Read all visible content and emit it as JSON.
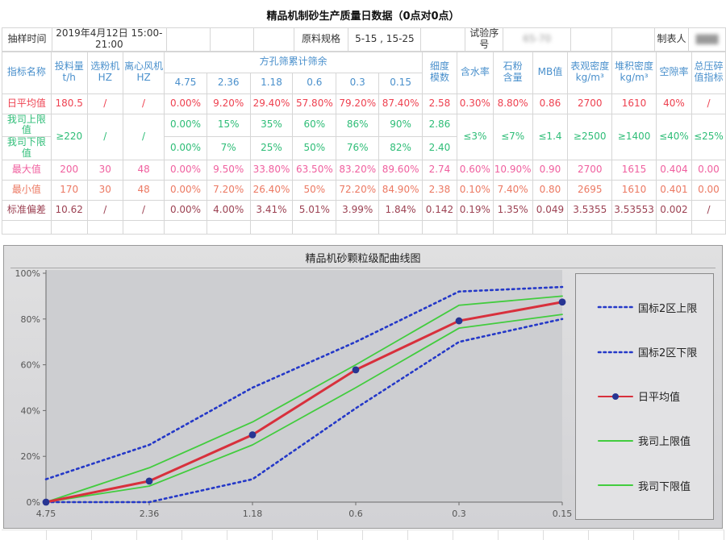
{
  "page_title": "精品机制砂生产质量日数据（0点对0点）",
  "info_row": {
    "sampling_label": "抽样时间",
    "sampling_value": "2019年4月12日 15:00-21:00",
    "material_label": "原料规格",
    "material_value": "5-15 , 15-25",
    "serial_label": "试验序号",
    "serial_value_redacted": "65-70",
    "preparer_label": "制表人",
    "preparer_value_redacted": "▇▇▇"
  },
  "table": {
    "header": {
      "indicator": "指标名称",
      "feed": "投料量\nt/h",
      "classifier": "选粉机\nHZ",
      "fan": "离心风机\nHZ",
      "sieve_group": "方孔筛累计筛余",
      "sieve_sizes": [
        "4.75",
        "2.36",
        "1.18",
        "0.6",
        "0.3",
        "0.15"
      ],
      "fineness": "细度\n模数",
      "moisture": "含水率",
      "stone_powder": "石粉\n含量",
      "mb": "MB值",
      "apparent_density": "表观密度\nkg/m³",
      "bulk_density": "堆积密度\nkg/m³",
      "void_ratio": "空隙率",
      "crush_index": "总压碎\n值指标"
    },
    "header_color": "#4a90cc",
    "rows": {
      "avg": {
        "label": "日平均值",
        "color": "#ee4150",
        "cells": [
          "180.5",
          "/",
          "/",
          "0.00%",
          "9.20%",
          "29.40%",
          "57.80%",
          "79.20%",
          "87.40%",
          "2.58",
          "0.30%",
          "8.80%",
          "0.86",
          "2700",
          "1610",
          "40%",
          "/"
        ]
      },
      "upper": {
        "label": "我司上限值",
        "color": "#2ebd77",
        "cells": [
          "0.00%",
          "15%",
          "35%",
          "60%",
          "86%",
          "90%",
          "2.86"
        ]
      },
      "lower": {
        "label": "我司下限值",
        "color": "#2ebd77",
        "cells": [
          "0.00%",
          "7%",
          "25%",
          "50%",
          "76%",
          "82%",
          "2.40"
        ]
      },
      "max": {
        "label": "最大值",
        "color": "#f0609f",
        "cells": [
          "200",
          "30",
          "48",
          "0.00%",
          "9.50%",
          "33.80%",
          "63.50%",
          "83.20%",
          "89.60%",
          "2.74",
          "0.60%",
          "10.90%",
          "0.90",
          "2700",
          "1615",
          "0.404",
          "0.00"
        ]
      },
      "min": {
        "label": "最小值",
        "color": "#ec7963",
        "cells": [
          "170",
          "30",
          "48",
          "0.00%",
          "7.20%",
          "26.40%",
          "50%",
          "72.20%",
          "84.90%",
          "2.38",
          "0.10%",
          "7.40%",
          "0.80",
          "2695",
          "1610",
          "0.401",
          "0.00"
        ]
      },
      "std": {
        "label": "标准偏差",
        "color": "#9c4253",
        "cells": [
          "10.62",
          "/",
          "/",
          "0.00%",
          "4.00%",
          "3.41%",
          "5.01%",
          "3.99%",
          "1.84%",
          "0.142",
          "0.19%",
          "1.35%",
          "0.049",
          "3.5355",
          "3.53553",
          "0.002",
          "/"
        ]
      }
    },
    "merged_limits": {
      "feed": "≥220",
      "classifier": "/",
      "fan": "/",
      "moisture": "≤3%",
      "stone_powder": "≤7%",
      "mb": "≤1.4",
      "apparent_density": "≥2500",
      "bulk_density": "≥1400",
      "void_ratio": "≤40%",
      "crush_index": "≤25%"
    }
  },
  "chart_data": {
    "type": "line",
    "title": "精品机砂颗粒级配曲线图",
    "x_categories": [
      "4.75",
      "2.36",
      "1.18",
      "0.6",
      "0.3",
      "0.15"
    ],
    "y_ticks": [
      "0%",
      "20%",
      "40%",
      "60%",
      "80%",
      "100%"
    ],
    "ylim": [
      0,
      100
    ],
    "grid": false,
    "legend_position": "right",
    "series": [
      {
        "name": "国标2区上限",
        "color": "#2438c8",
        "style": "dotted",
        "marker": false,
        "values": [
          10,
          25,
          50,
          70,
          92,
          94
        ]
      },
      {
        "name": "国标2区下限",
        "color": "#2438c8",
        "style": "dotted",
        "marker": false,
        "values": [
          0,
          0,
          10,
          41,
          70,
          80
        ]
      },
      {
        "name": "日平均值",
        "color": "#d8303c",
        "style": "solid",
        "marker": true,
        "marker_color": "#283593",
        "values": [
          0,
          9.2,
          29.4,
          57.8,
          79.2,
          87.4
        ]
      },
      {
        "name": "我司上限值",
        "color": "#42cc3e",
        "style": "solid",
        "marker": false,
        "values": [
          0,
          15,
          35,
          60,
          86,
          90
        ]
      },
      {
        "name": "我司下限值",
        "color": "#42cc3e",
        "style": "solid",
        "marker": false,
        "values": [
          0,
          7,
          25,
          50,
          76,
          82
        ]
      }
    ]
  }
}
